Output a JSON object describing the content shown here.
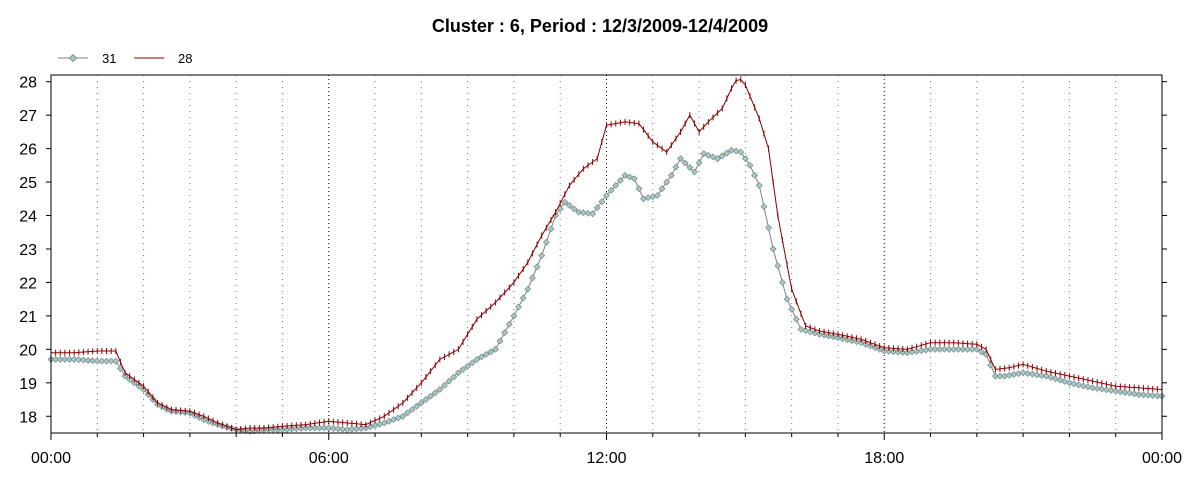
{
  "chart_data": {
    "type": "line",
    "title": "Cluster : 6, Period : 12/3/2009-12/4/2009",
    "xlabel": "",
    "ylabel": "",
    "x_ticks": [
      "00:00",
      "06:00",
      "12:00",
      "18:00",
      "00:00"
    ],
    "x_range_hours": [
      0,
      24
    ],
    "y_ticks": [
      18,
      19,
      20,
      21,
      22,
      23,
      24,
      25,
      26,
      27,
      28
    ],
    "ylim": [
      17.5,
      28.2
    ],
    "grid": "vertical dotted",
    "legend_position": "top-left",
    "series": [
      {
        "name": "31",
        "color": "#808080",
        "marker_color": "#a7c7c7",
        "marker": "diamond",
        "points": [
          [
            0,
            19.7
          ],
          [
            0.5,
            19.7
          ],
          [
            1.0,
            19.65
          ],
          [
            1.4,
            19.65
          ],
          [
            1.6,
            19.2
          ],
          [
            2.0,
            18.8
          ],
          [
            2.3,
            18.35
          ],
          [
            2.6,
            18.15
          ],
          [
            3.0,
            18.1
          ],
          [
            3.3,
            17.9
          ],
          [
            3.6,
            17.75
          ],
          [
            4.0,
            17.6
          ],
          [
            4.3,
            17.55
          ],
          [
            4.6,
            17.6
          ],
          [
            5.0,
            17.6
          ],
          [
            5.5,
            17.65
          ],
          [
            6.0,
            17.65
          ],
          [
            6.4,
            17.6
          ],
          [
            6.8,
            17.65
          ],
          [
            7.2,
            17.8
          ],
          [
            7.6,
            18.0
          ],
          [
            8.0,
            18.4
          ],
          [
            8.4,
            18.8
          ],
          [
            8.8,
            19.3
          ],
          [
            9.2,
            19.7
          ],
          [
            9.6,
            20.0
          ],
          [
            10.0,
            21.0
          ],
          [
            10.3,
            21.8
          ],
          [
            10.6,
            22.8
          ],
          [
            10.9,
            24.0
          ],
          [
            11.1,
            24.4
          ],
          [
            11.4,
            24.1
          ],
          [
            11.7,
            24.05
          ],
          [
            12.0,
            24.6
          ],
          [
            12.4,
            25.2
          ],
          [
            12.6,
            25.1
          ],
          [
            12.8,
            24.5
          ],
          [
            13.1,
            24.6
          ],
          [
            13.4,
            25.2
          ],
          [
            13.6,
            25.7
          ],
          [
            13.9,
            25.3
          ],
          [
            14.1,
            25.85
          ],
          [
            14.4,
            25.7
          ],
          [
            14.7,
            25.95
          ],
          [
            14.9,
            25.9
          ],
          [
            15.1,
            25.5
          ],
          [
            15.3,
            24.9
          ],
          [
            15.6,
            23.0
          ],
          [
            15.9,
            21.5
          ],
          [
            16.2,
            20.6
          ],
          [
            16.6,
            20.45
          ],
          [
            17.0,
            20.35
          ],
          [
            17.5,
            20.2
          ],
          [
            18.0,
            19.95
          ],
          [
            18.5,
            19.9
          ],
          [
            19.0,
            20.0
          ],
          [
            19.5,
            20.0
          ],
          [
            20.0,
            20.0
          ],
          [
            20.2,
            19.85
          ],
          [
            20.4,
            19.2
          ],
          [
            20.6,
            19.2
          ],
          [
            21.0,
            19.3
          ],
          [
            21.5,
            19.2
          ],
          [
            22.0,
            19.0
          ],
          [
            22.5,
            18.85
          ],
          [
            23.0,
            18.75
          ],
          [
            23.5,
            18.65
          ],
          [
            24.0,
            18.6
          ]
        ]
      },
      {
        "name": "28",
        "color": "#8b0000",
        "marker": "plus",
        "points": [
          [
            0,
            19.9
          ],
          [
            0.5,
            19.9
          ],
          [
            1.0,
            19.95
          ],
          [
            1.4,
            19.95
          ],
          [
            1.6,
            19.3
          ],
          [
            2.0,
            18.9
          ],
          [
            2.3,
            18.4
          ],
          [
            2.6,
            18.2
          ],
          [
            3.0,
            18.15
          ],
          [
            3.3,
            18.0
          ],
          [
            3.6,
            17.8
          ],
          [
            4.0,
            17.6
          ],
          [
            4.3,
            17.65
          ],
          [
            4.6,
            17.65
          ],
          [
            5.0,
            17.7
          ],
          [
            5.5,
            17.75
          ],
          [
            6.0,
            17.85
          ],
          [
            6.4,
            17.8
          ],
          [
            6.8,
            17.75
          ],
          [
            7.2,
            18.0
          ],
          [
            7.6,
            18.4
          ],
          [
            8.0,
            19.0
          ],
          [
            8.4,
            19.7
          ],
          [
            8.8,
            20.0
          ],
          [
            9.2,
            20.9
          ],
          [
            9.6,
            21.4
          ],
          [
            10.0,
            22.0
          ],
          [
            10.3,
            22.6
          ],
          [
            10.6,
            23.4
          ],
          [
            10.9,
            24.1
          ],
          [
            11.2,
            24.9
          ],
          [
            11.5,
            25.4
          ],
          [
            11.8,
            25.7
          ],
          [
            12.0,
            26.7
          ],
          [
            12.4,
            26.8
          ],
          [
            12.7,
            26.75
          ],
          [
            13.0,
            26.2
          ],
          [
            13.3,
            25.9
          ],
          [
            13.6,
            26.5
          ],
          [
            13.8,
            27.0
          ],
          [
            14.0,
            26.5
          ],
          [
            14.2,
            26.8
          ],
          [
            14.5,
            27.2
          ],
          [
            14.7,
            27.8
          ],
          [
            14.85,
            28.15
          ],
          [
            15.0,
            27.9
          ],
          [
            15.3,
            26.9
          ],
          [
            15.5,
            26.0
          ],
          [
            15.7,
            24.0
          ],
          [
            16.0,
            21.8
          ],
          [
            16.3,
            20.7
          ],
          [
            16.6,
            20.55
          ],
          [
            17.0,
            20.45
          ],
          [
            17.5,
            20.3
          ],
          [
            18.0,
            20.05
          ],
          [
            18.5,
            20.0
          ],
          [
            19.0,
            20.2
          ],
          [
            19.5,
            20.2
          ],
          [
            20.0,
            20.15
          ],
          [
            20.2,
            20.0
          ],
          [
            20.4,
            19.4
          ],
          [
            20.7,
            19.45
          ],
          [
            21.0,
            19.55
          ],
          [
            21.5,
            19.35
          ],
          [
            22.0,
            19.2
          ],
          [
            22.5,
            19.05
          ],
          [
            23.0,
            18.9
          ],
          [
            23.5,
            18.85
          ],
          [
            24.0,
            18.8
          ]
        ]
      }
    ]
  }
}
